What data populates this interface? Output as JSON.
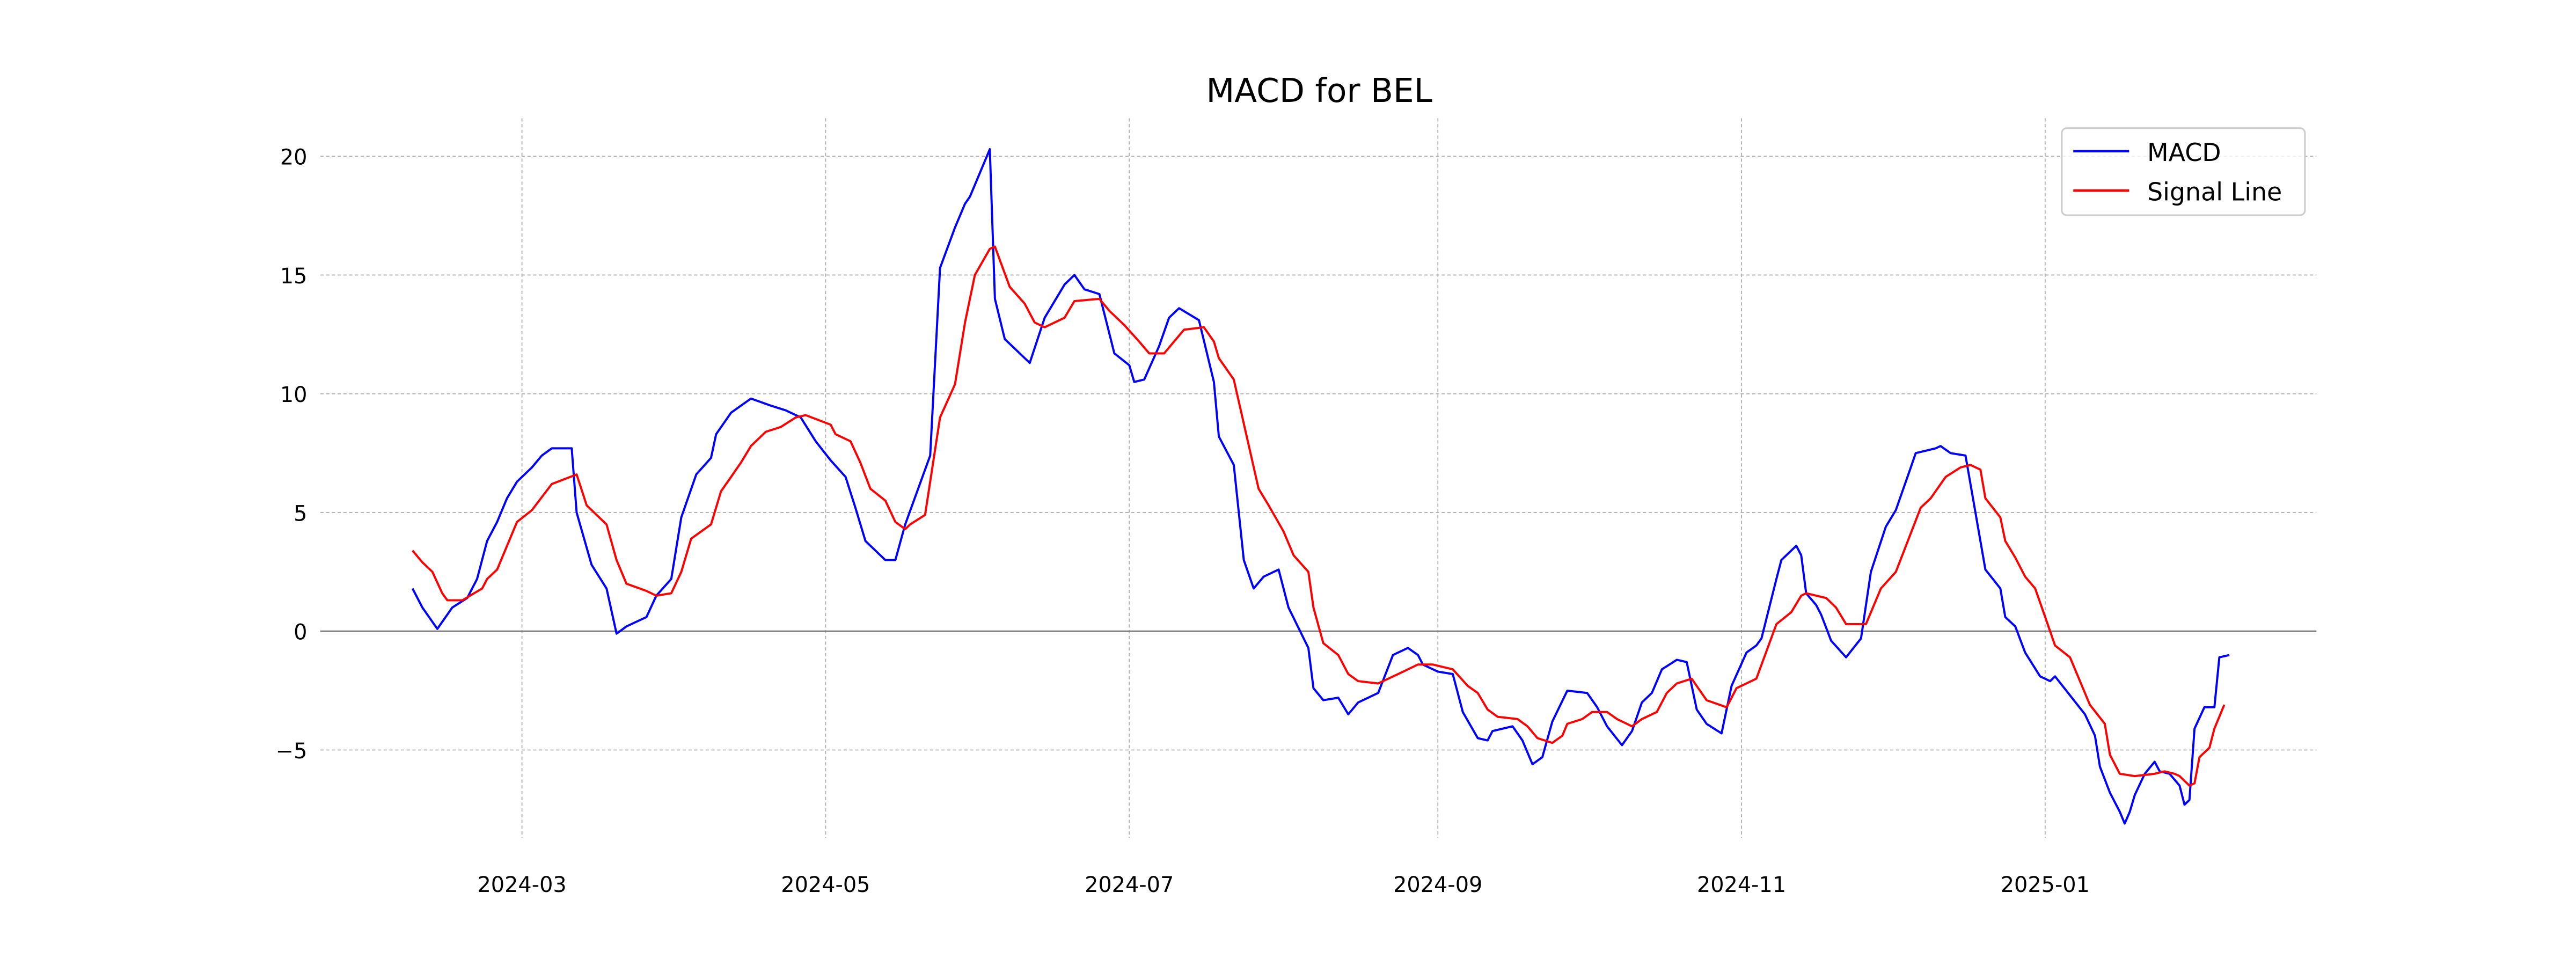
{
  "chart_data": {
    "type": "line",
    "title": "MACD for BEL",
    "xlabel": "",
    "ylabel": "",
    "x_unit": "days since 2024-02-08",
    "xlim": [
      -18.5,
      382.5
    ],
    "ylim": [
      -8.7,
      21.6
    ],
    "grid": true,
    "legend_position": "top-right",
    "x_ticks": [
      {
        "day": 22,
        "label": "2024-03"
      },
      {
        "day": 83,
        "label": "2024-05"
      },
      {
        "day": 144,
        "label": "2024-07"
      },
      {
        "day": 206,
        "label": "2024-09"
      },
      {
        "day": 267,
        "label": "2024-11"
      },
      {
        "day": 328,
        "label": "2025-01"
      }
    ],
    "y_ticks": [
      {
        "value": -5,
        "label": "−5"
      },
      {
        "value": 0,
        "label": "0"
      },
      {
        "value": 5,
        "label": "5"
      },
      {
        "value": 10,
        "label": "10"
      },
      {
        "value": 15,
        "label": "15"
      },
      {
        "value": 20,
        "label": "20"
      }
    ],
    "series": [
      {
        "name": "MACD",
        "color": "#0000ff",
        "points": [
          [
            0,
            1.8
          ],
          [
            2,
            1.0
          ],
          [
            5,
            0.1
          ],
          [
            8,
            1.0
          ],
          [
            11,
            1.4
          ],
          [
            13,
            2.2
          ],
          [
            15,
            3.8
          ],
          [
            17,
            4.6
          ],
          [
            19,
            5.6
          ],
          [
            21,
            6.3
          ],
          [
            24,
            6.9
          ],
          [
            26,
            7.4
          ],
          [
            28,
            7.7
          ],
          [
            32,
            7.7
          ],
          [
            33,
            5.0
          ],
          [
            36,
            2.8
          ],
          [
            39,
            1.8
          ],
          [
            41,
            -0.1
          ],
          [
            43,
            0.2
          ],
          [
            47,
            0.6
          ],
          [
            49,
            1.5
          ],
          [
            52,
            2.2
          ],
          [
            54,
            4.8
          ],
          [
            57,
            6.6
          ],
          [
            60,
            7.3
          ],
          [
            61,
            8.3
          ],
          [
            64,
            9.2
          ],
          [
            68,
            9.8
          ],
          [
            72,
            9.5
          ],
          [
            75,
            9.3
          ],
          [
            78,
            9.0
          ],
          [
            81,
            8.0
          ],
          [
            84,
            7.2
          ],
          [
            87,
            6.5
          ],
          [
            89,
            5.2
          ],
          [
            91,
            3.8
          ],
          [
            95,
            3.0
          ],
          [
            97,
            3.0
          ],
          [
            99,
            4.5
          ],
          [
            104,
            7.4
          ],
          [
            106,
            15.3
          ],
          [
            109,
            17.0
          ],
          [
            111,
            18.0
          ],
          [
            112,
            18.3
          ],
          [
            116,
            20.3
          ],
          [
            117,
            14.0
          ],
          [
            119,
            12.3
          ],
          [
            122,
            11.7
          ],
          [
            124,
            11.3
          ],
          [
            127,
            13.2
          ],
          [
            131,
            14.6
          ],
          [
            133,
            15.0
          ],
          [
            135,
            14.4
          ],
          [
            138,
            14.2
          ],
          [
            141,
            11.7
          ],
          [
            144,
            11.2
          ],
          [
            145,
            10.5
          ],
          [
            147,
            10.6
          ],
          [
            150,
            12.0
          ],
          [
            152,
            13.2
          ],
          [
            154,
            13.6
          ],
          [
            158,
            13.1
          ],
          [
            161,
            10.5
          ],
          [
            162,
            8.2
          ],
          [
            165,
            7.0
          ],
          [
            167,
            3.0
          ],
          [
            169,
            1.8
          ],
          [
            171,
            2.3
          ],
          [
            174,
            2.6
          ],
          [
            176,
            1.0
          ],
          [
            180,
            -0.7
          ],
          [
            181,
            -2.4
          ],
          [
            183,
            -2.9
          ],
          [
            186,
            -2.8
          ],
          [
            188,
            -3.5
          ],
          [
            190,
            -3.0
          ],
          [
            194,
            -2.6
          ],
          [
            197,
            -1.0
          ],
          [
            200,
            -0.7
          ],
          [
            202,
            -1.0
          ],
          [
            203,
            -1.4
          ],
          [
            206,
            -1.7
          ],
          [
            209,
            -1.8
          ],
          [
            211,
            -3.4
          ],
          [
            214,
            -4.5
          ],
          [
            216,
            -4.6
          ],
          [
            217,
            -4.2
          ],
          [
            221,
            -4.0
          ],
          [
            223,
            -4.6
          ],
          [
            225,
            -5.6
          ],
          [
            227,
            -5.3
          ],
          [
            229,
            -3.8
          ],
          [
            232,
            -2.5
          ],
          [
            236,
            -2.6
          ],
          [
            238,
            -3.2
          ],
          [
            240,
            -4.0
          ],
          [
            243,
            -4.8
          ],
          [
            245,
            -4.2
          ],
          [
            247,
            -3.0
          ],
          [
            249,
            -2.6
          ],
          [
            251,
            -1.6
          ],
          [
            254,
            -1.2
          ],
          [
            256,
            -1.3
          ],
          [
            258,
            -3.3
          ],
          [
            260,
            -3.9
          ],
          [
            263,
            -4.3
          ],
          [
            265,
            -2.3
          ],
          [
            268,
            -0.9
          ],
          [
            270,
            -0.6
          ],
          [
            271,
            -0.3
          ],
          [
            274,
            2.2
          ],
          [
            275,
            3.0
          ],
          [
            278,
            3.6
          ],
          [
            279,
            3.2
          ],
          [
            280,
            1.6
          ],
          [
            282,
            1.1
          ],
          [
            283,
            0.7
          ],
          [
            285,
            -0.4
          ],
          [
            288,
            -1.1
          ],
          [
            291,
            -0.3
          ],
          [
            293,
            2.5
          ],
          [
            296,
            4.4
          ],
          [
            298,
            5.1
          ],
          [
            301,
            6.9
          ],
          [
            302,
            7.5
          ],
          [
            306,
            7.7
          ],
          [
            307,
            7.8
          ],
          [
            309,
            7.5
          ],
          [
            312,
            7.4
          ],
          [
            316,
            2.6
          ],
          [
            319,
            1.8
          ],
          [
            320,
            0.6
          ],
          [
            322,
            0.2
          ],
          [
            324,
            -0.9
          ],
          [
            327,
            -1.9
          ],
          [
            329,
            -2.1
          ],
          [
            330,
            -1.9
          ],
          [
            336,
            -3.5
          ],
          [
            338,
            -4.4
          ],
          [
            339,
            -5.7
          ],
          [
            341,
            -6.8
          ],
          [
            343,
            -7.6
          ],
          [
            344,
            -8.1
          ],
          [
            345,
            -7.6
          ],
          [
            346,
            -6.9
          ],
          [
            348,
            -6.0
          ],
          [
            350,
            -5.5
          ],
          [
            351,
            -5.9
          ],
          [
            353,
            -6.0
          ],
          [
            355,
            -6.5
          ],
          [
            356,
            -7.3
          ],
          [
            357,
            -7.1
          ],
          [
            358,
            -4.1
          ],
          [
            360,
            -3.2
          ],
          [
            362,
            -3.2
          ],
          [
            363,
            -1.1
          ],
          [
            365,
            -1.0
          ]
        ]
      },
      {
        "name": "Signal Line",
        "color": "#ff0000",
        "points": [
          [
            0,
            3.4
          ],
          [
            2,
            2.9
          ],
          [
            4,
            2.5
          ],
          [
            6,
            1.6
          ],
          [
            7,
            1.3
          ],
          [
            10,
            1.3
          ],
          [
            14,
            1.8
          ],
          [
            15,
            2.2
          ],
          [
            17,
            2.6
          ],
          [
            21,
            4.6
          ],
          [
            24,
            5.1
          ],
          [
            28,
            6.2
          ],
          [
            33,
            6.6
          ],
          [
            35,
            5.3
          ],
          [
            39,
            4.5
          ],
          [
            41,
            3.0
          ],
          [
            43,
            2.0
          ],
          [
            47,
            1.7
          ],
          [
            49,
            1.5
          ],
          [
            52,
            1.6
          ],
          [
            54,
            2.5
          ],
          [
            56,
            3.9
          ],
          [
            60,
            4.5
          ],
          [
            62,
            5.9
          ],
          [
            64,
            6.5
          ],
          [
            66,
            7.1
          ],
          [
            68,
            7.8
          ],
          [
            71,
            8.4
          ],
          [
            74,
            8.6
          ],
          [
            77,
            9.0
          ],
          [
            79,
            9.1
          ],
          [
            84,
            8.7
          ],
          [
            85,
            8.3
          ],
          [
            88,
            8.0
          ],
          [
            90,
            7.1
          ],
          [
            92,
            6.0
          ],
          [
            95,
            5.5
          ],
          [
            97,
            4.6
          ],
          [
            99,
            4.3
          ],
          [
            100,
            4.5
          ],
          [
            103,
            4.9
          ],
          [
            106,
            9.0
          ],
          [
            109,
            10.4
          ],
          [
            111,
            13.0
          ],
          [
            113,
            15.0
          ],
          [
            116,
            16.1
          ],
          [
            117,
            16.2
          ],
          [
            120,
            14.5
          ],
          [
            123,
            13.8
          ],
          [
            125,
            13.0
          ],
          [
            127,
            12.8
          ],
          [
            131,
            13.2
          ],
          [
            133,
            13.9
          ],
          [
            138,
            14.0
          ],
          [
            140,
            13.5
          ],
          [
            143,
            12.9
          ],
          [
            146,
            12.2
          ],
          [
            148,
            11.7
          ],
          [
            151,
            11.7
          ],
          [
            155,
            12.7
          ],
          [
            159,
            12.8
          ],
          [
            161,
            12.2
          ],
          [
            162,
            11.5
          ],
          [
            165,
            10.6
          ],
          [
            170,
            6.0
          ],
          [
            172,
            5.3
          ],
          [
            175,
            4.2
          ],
          [
            177,
            3.2
          ],
          [
            180,
            2.5
          ],
          [
            181,
            1.0
          ],
          [
            183,
            -0.5
          ],
          [
            186,
            -1.0
          ],
          [
            188,
            -1.8
          ],
          [
            190,
            -2.1
          ],
          [
            194,
            -2.2
          ],
          [
            198,
            -1.8
          ],
          [
            202,
            -1.4
          ],
          [
            205,
            -1.4
          ],
          [
            209,
            -1.6
          ],
          [
            212,
            -2.3
          ],
          [
            214,
            -2.6
          ],
          [
            216,
            -3.3
          ],
          [
            218,
            -3.6
          ],
          [
            222,
            -3.7
          ],
          [
            224,
            -4.0
          ],
          [
            226,
            -4.5
          ],
          [
            229,
            -4.7
          ],
          [
            231,
            -4.4
          ],
          [
            232,
            -3.9
          ],
          [
            235,
            -3.7
          ],
          [
            237,
            -3.4
          ],
          [
            240,
            -3.4
          ],
          [
            242,
            -3.7
          ],
          [
            245,
            -4.0
          ],
          [
            247,
            -3.7
          ],
          [
            250,
            -3.4
          ],
          [
            252,
            -2.6
          ],
          [
            254,
            -2.2
          ],
          [
            257,
            -2.0
          ],
          [
            260,
            -2.9
          ],
          [
            264,
            -3.2
          ],
          [
            266,
            -2.4
          ],
          [
            270,
            -2.0
          ],
          [
            274,
            0.3
          ],
          [
            277,
            0.8
          ],
          [
            279,
            1.5
          ],
          [
            280,
            1.6
          ],
          [
            284,
            1.4
          ],
          [
            286,
            1.0
          ],
          [
            288,
            0.3
          ],
          [
            292,
            0.3
          ],
          [
            295,
            1.8
          ],
          [
            298,
            2.5
          ],
          [
            303,
            5.2
          ],
          [
            305,
            5.6
          ],
          [
            308,
            6.5
          ],
          [
            311,
            6.9
          ],
          [
            313,
            7.0
          ],
          [
            315,
            6.8
          ],
          [
            316,
            5.6
          ],
          [
            319,
            4.8
          ],
          [
            320,
            3.8
          ],
          [
            322,
            3.1
          ],
          [
            324,
            2.3
          ],
          [
            326,
            1.8
          ],
          [
            328,
            0.6
          ],
          [
            330,
            -0.6
          ],
          [
            333,
            -1.1
          ],
          [
            337,
            -3.1
          ],
          [
            340,
            -3.9
          ],
          [
            341,
            -5.2
          ],
          [
            343,
            -6.0
          ],
          [
            346,
            -6.1
          ],
          [
            350,
            -6.0
          ],
          [
            352,
            -5.9
          ],
          [
            354,
            -6.0
          ],
          [
            355,
            -6.1
          ],
          [
            357,
            -6.5
          ],
          [
            358,
            -6.4
          ],
          [
            359,
            -5.3
          ],
          [
            361,
            -4.9
          ],
          [
            362,
            -4.1
          ],
          [
            364,
            -3.1
          ]
        ]
      }
    ]
  }
}
